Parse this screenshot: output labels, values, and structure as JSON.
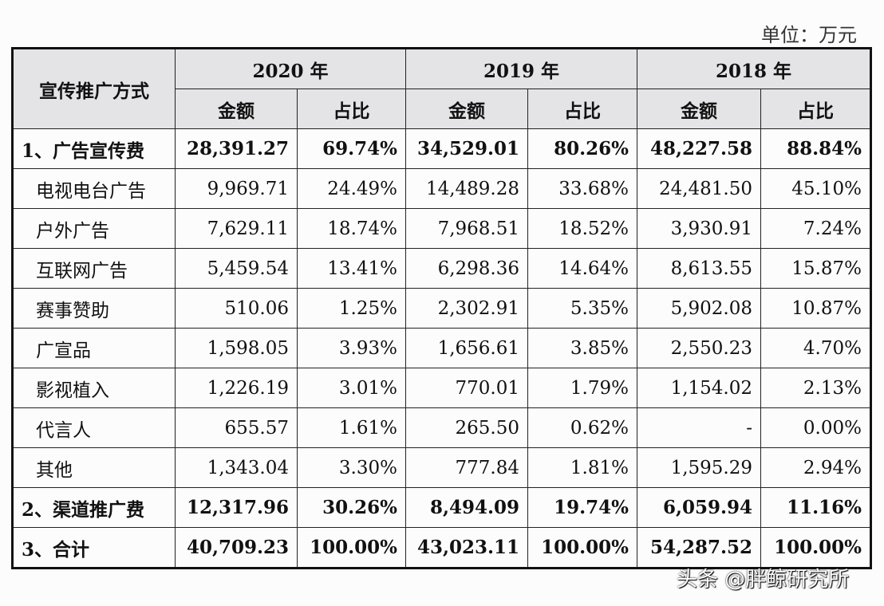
{
  "unit_label": "单位：万元",
  "header": {
    "method": "宣传推广方式",
    "years": [
      "2020 年",
      "2019 年",
      "2018 年"
    ],
    "amount": "金额",
    "ratio": "占比"
  },
  "rows": [
    {
      "label": "1、广告宣传费",
      "bold": true,
      "values": [
        "28,391.27",
        "69.74%",
        "34,529.01",
        "80.26%",
        "48,227.58",
        "88.84%"
      ]
    },
    {
      "label": "电视电台广告",
      "bold": false,
      "values": [
        "9,969.71",
        "24.49%",
        "14,489.28",
        "33.68%",
        "24,481.50",
        "45.10%"
      ]
    },
    {
      "label": "户外广告",
      "bold": false,
      "values": [
        "7,629.11",
        "18.74%",
        "7,968.51",
        "18.52%",
        "3,930.91",
        "7.24%"
      ]
    },
    {
      "label": "互联网广告",
      "bold": false,
      "values": [
        "5,459.54",
        "13.41%",
        "6,298.36",
        "14.64%",
        "8,613.55",
        "15.87%"
      ]
    },
    {
      "label": "赛事赞助",
      "bold": false,
      "values": [
        "510.06",
        "1.25%",
        "2,302.91",
        "5.35%",
        "5,902.08",
        "10.87%"
      ]
    },
    {
      "label": "广宣品",
      "bold": false,
      "values": [
        "1,598.05",
        "3.93%",
        "1,656.61",
        "3.85%",
        "2,550.23",
        "4.70%"
      ]
    },
    {
      "label": "影视植入",
      "bold": false,
      "values": [
        "1,226.19",
        "3.01%",
        "770.01",
        "1.79%",
        "1,154.02",
        "2.13%"
      ]
    },
    {
      "label": "代言人",
      "bold": false,
      "values": [
        "655.57",
        "1.61%",
        "265.50",
        "0.62%",
        "-",
        "0.00%"
      ]
    },
    {
      "label": "其他",
      "bold": false,
      "values": [
        "1,343.04",
        "3.30%",
        "777.84",
        "1.81%",
        "1,595.29",
        "2.94%"
      ]
    },
    {
      "label": "2、渠道推广费",
      "bold": true,
      "values": [
        "12,317.96",
        "30.26%",
        "8,494.09",
        "19.74%",
        "6,059.94",
        "11.16%"
      ]
    },
    {
      "label": "3、合计",
      "bold": true,
      "values": [
        "40,709.23",
        "100.00%",
        "43,023.11",
        "100.00%",
        "54,287.52",
        "100.00%"
      ]
    }
  ],
  "watermark": "头条 @胖鲸研究所"
}
